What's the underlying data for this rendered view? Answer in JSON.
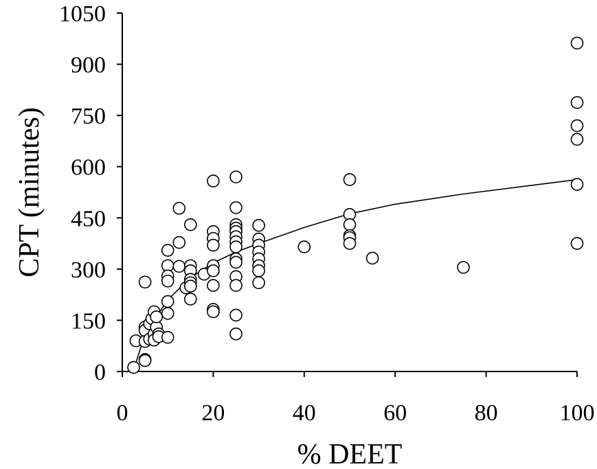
{
  "chart_data": {
    "type": "scatter",
    "xlabel": "% DEET",
    "ylabel": "CPT (minutes)",
    "xlim": [
      0,
      100
    ],
    "ylim": [
      0,
      1050
    ],
    "xticks": [
      0,
      20,
      40,
      60,
      80,
      100
    ],
    "yticks": [
      0,
      150,
      300,
      450,
      600,
      750,
      900,
      1050
    ],
    "grid": false,
    "legend": "none",
    "series": [
      {
        "kind": "points",
        "marker": "open-circle",
        "points": [
          [
            2.5,
            12
          ],
          [
            3,
            90
          ],
          [
            5,
            262
          ],
          [
            5,
            130
          ],
          [
            5,
            120
          ],
          [
            5,
            88
          ],
          [
            5,
            35
          ],
          [
            5,
            32
          ],
          [
            6,
            95
          ],
          [
            6,
            140
          ],
          [
            6.5,
            155
          ],
          [
            7,
            175
          ],
          [
            7,
            110
          ],
          [
            7,
            92
          ],
          [
            7.5,
            130
          ],
          [
            7.5,
            160
          ],
          [
            8,
            110
          ],
          [
            8,
            102
          ],
          [
            10,
            355
          ],
          [
            10,
            310
          ],
          [
            10,
            280
          ],
          [
            10,
            265
          ],
          [
            10,
            205
          ],
          [
            10,
            170
          ],
          [
            10,
            100
          ],
          [
            12.5,
            478
          ],
          [
            12.5,
            378
          ],
          [
            12.5,
            308
          ],
          [
            14,
            245
          ],
          [
            15,
            430
          ],
          [
            15,
            310
          ],
          [
            15,
            295
          ],
          [
            15,
            270
          ],
          [
            15,
            260
          ],
          [
            15,
            250
          ],
          [
            15,
            212
          ],
          [
            18,
            285
          ],
          [
            20,
            558
          ],
          [
            20,
            410
          ],
          [
            20,
            390
          ],
          [
            20,
            370
          ],
          [
            20,
            310
          ],
          [
            20,
            295
          ],
          [
            20,
            252
          ],
          [
            20,
            182
          ],
          [
            20,
            175
          ],
          [
            25,
            570
          ],
          [
            25,
            480
          ],
          [
            25,
            430
          ],
          [
            25,
            420
          ],
          [
            25,
            410
          ],
          [
            25,
            395
          ],
          [
            25,
            380
          ],
          [
            25,
            365
          ],
          [
            25,
            330
          ],
          [
            25,
            320
          ],
          [
            25,
            278
          ],
          [
            25,
            252
          ],
          [
            25,
            165
          ],
          [
            25,
            110
          ],
          [
            30,
            428
          ],
          [
            30,
            388
          ],
          [
            30,
            370
          ],
          [
            30,
            350
          ],
          [
            30,
            330
          ],
          [
            30,
            310
          ],
          [
            30,
            295
          ],
          [
            30,
            260
          ],
          [
            40,
            365
          ],
          [
            50,
            562
          ],
          [
            50,
            460
          ],
          [
            50,
            430
          ],
          [
            50,
            398
          ],
          [
            50,
            392
          ],
          [
            50,
            375
          ],
          [
            55,
            332
          ],
          [
            75,
            305
          ],
          [
            100,
            962
          ],
          [
            100,
            788
          ],
          [
            100,
            720
          ],
          [
            100,
            680
          ],
          [
            100,
            548
          ],
          [
            100,
            375
          ]
        ]
      },
      {
        "kind": "fit-line",
        "points": [
          [
            2.5,
            5
          ],
          [
            5,
            110
          ],
          [
            10,
            210
          ],
          [
            15,
            275
          ],
          [
            20,
            318
          ],
          [
            25,
            350
          ],
          [
            30,
            375
          ],
          [
            40,
            422
          ],
          [
            50,
            462
          ],
          [
            60,
            490
          ],
          [
            75,
            520
          ],
          [
            100,
            562
          ]
        ]
      }
    ]
  }
}
